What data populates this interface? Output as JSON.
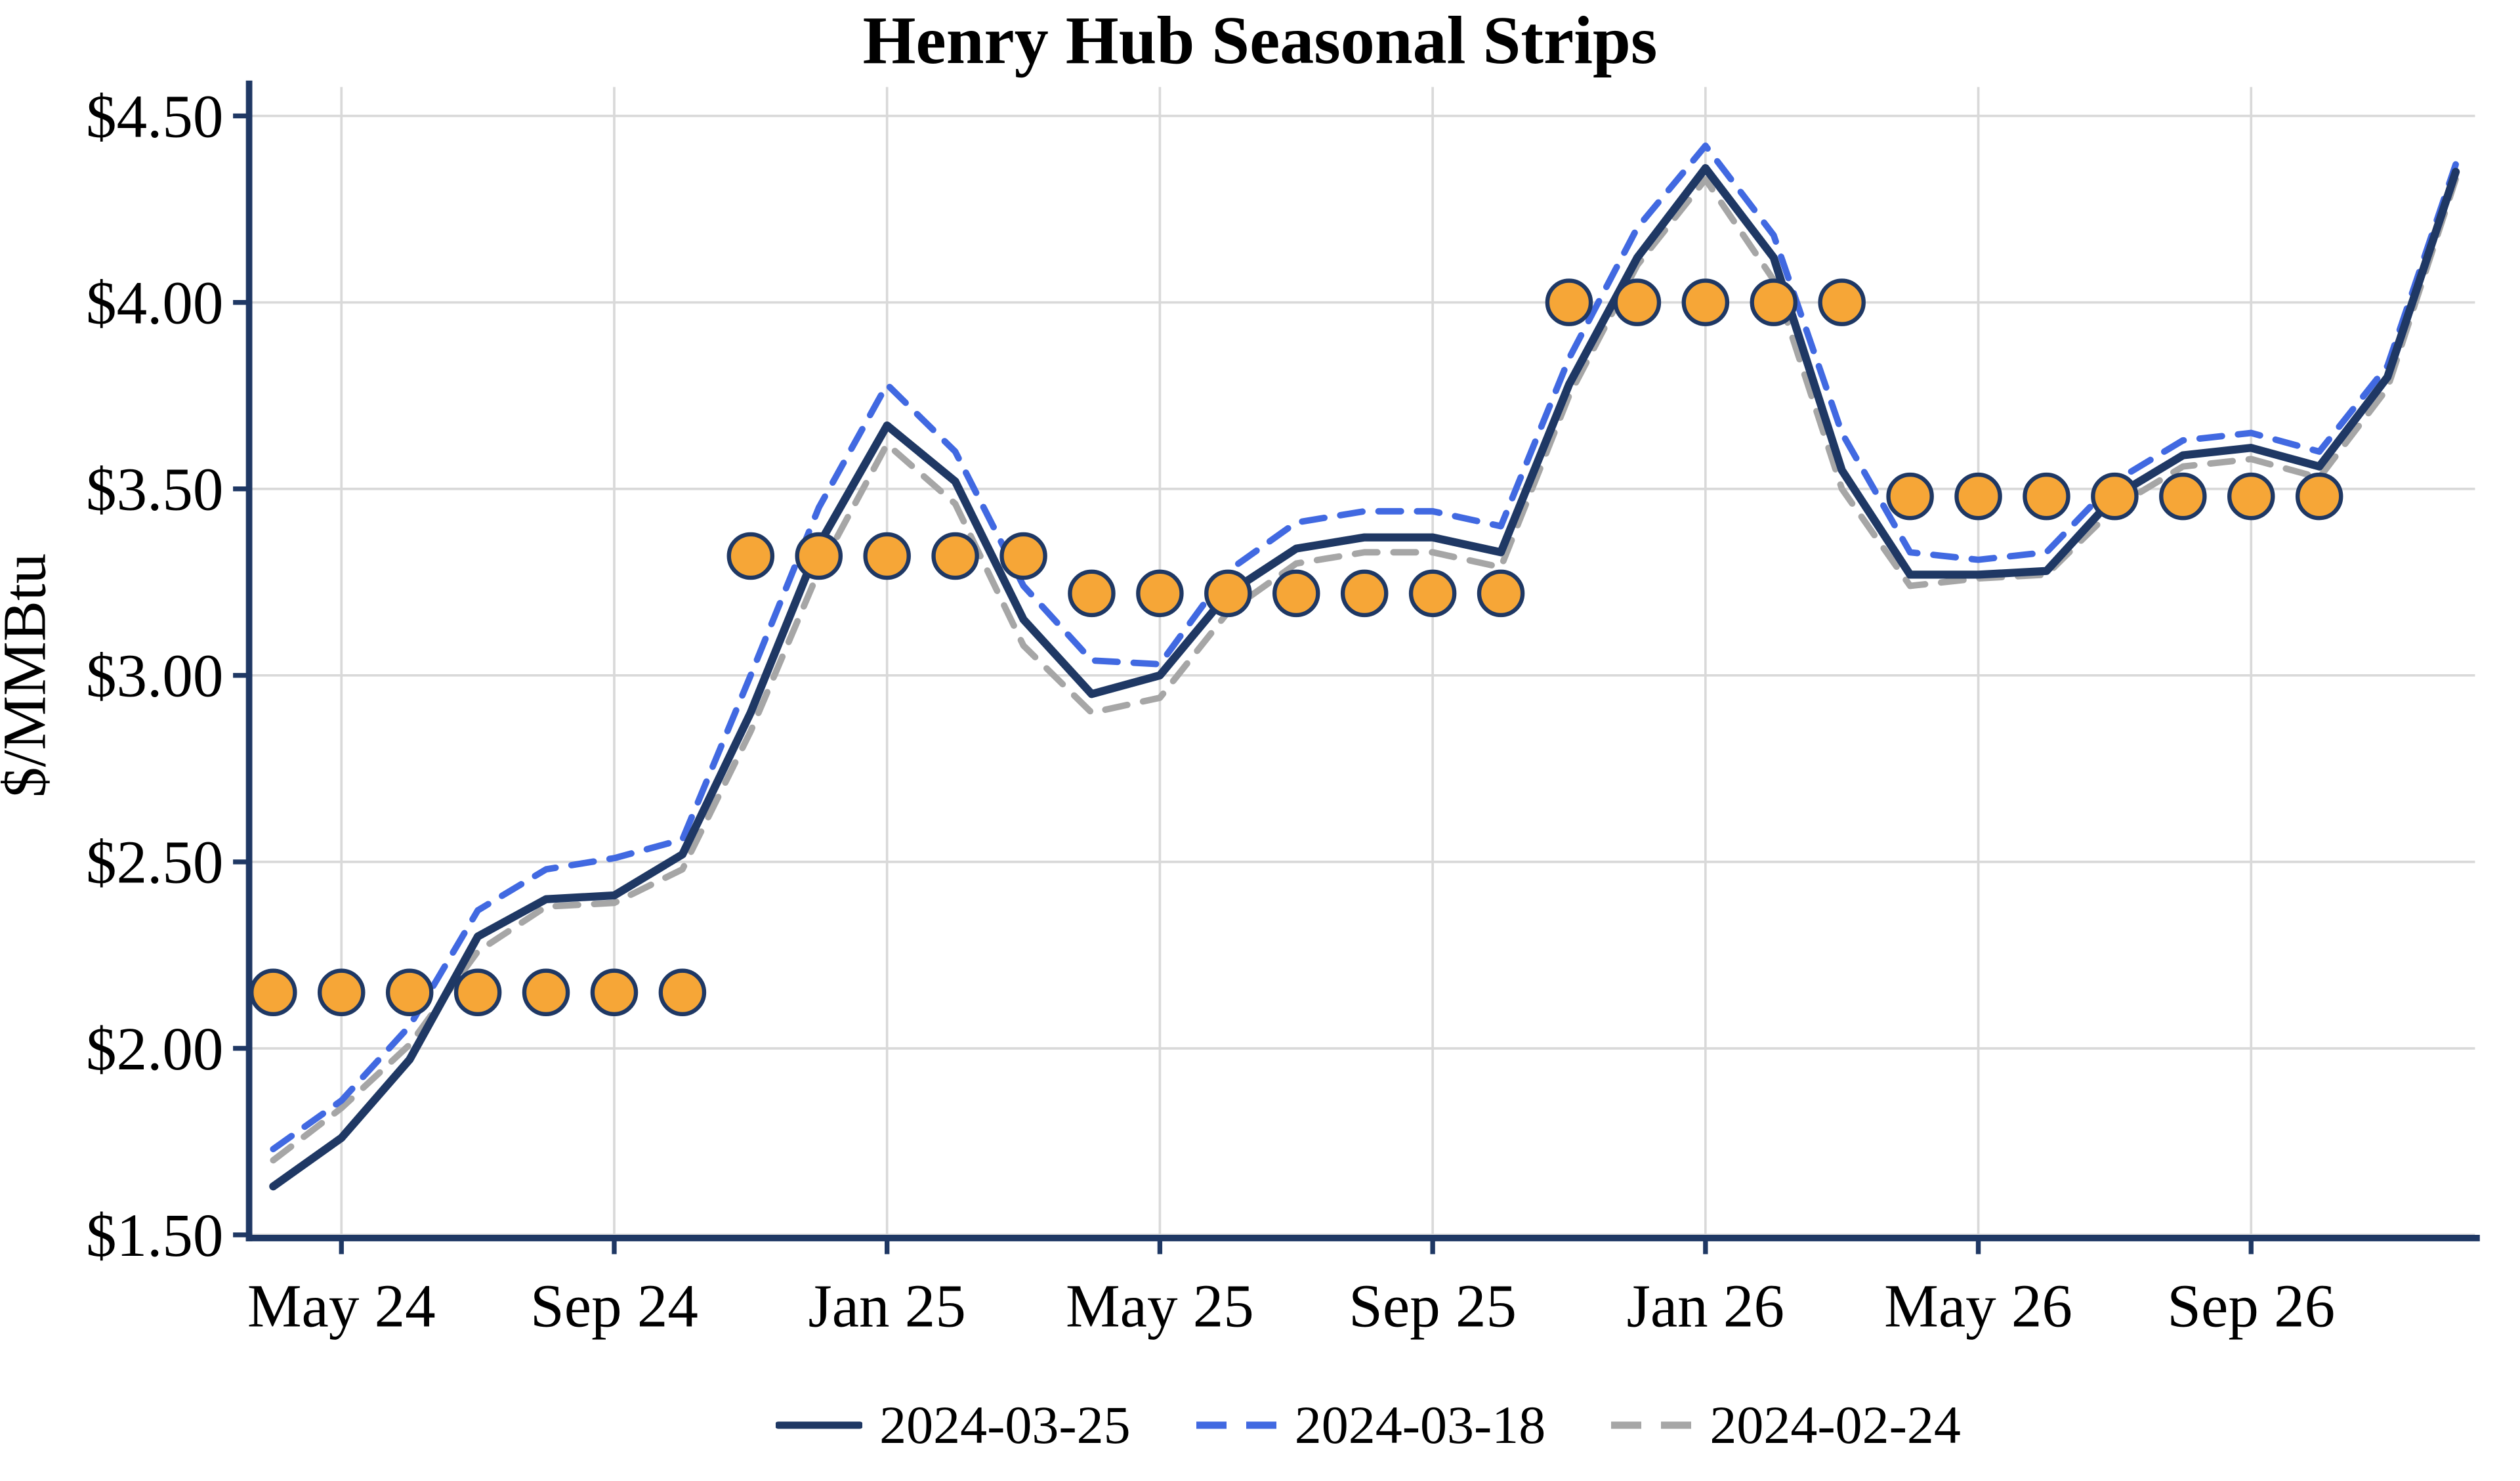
{
  "page": {
    "title": "Henry Hub Seasonal Strips"
  },
  "chart_data": {
    "type": "line",
    "title": "Henry Hub Seasonal Strips",
    "xlabel": "",
    "ylabel": "$/MMBtu",
    "ylim": [
      1.5,
      4.5
    ],
    "grid": true,
    "legend_position": "bottom",
    "y_ticks": [
      1.5,
      2.0,
      2.5,
      3.0,
      3.5,
      4.0,
      4.5
    ],
    "y_tick_labels": [
      "$1.50",
      "$2.00",
      "$2.50",
      "$3.00",
      "$3.50",
      "$4.00",
      "$4.50"
    ],
    "x_categories": [
      "Apr 24",
      "May 24",
      "Jun 24",
      "Jul 24",
      "Aug 24",
      "Sep 24",
      "Oct 24",
      "Nov 24",
      "Dec 24",
      "Jan 25",
      "Feb 25",
      "Mar 25",
      "Apr 25",
      "May 25",
      "Jun 25",
      "Jul 25",
      "Aug 25",
      "Sep 25",
      "Oct 25",
      "Nov 25",
      "Dec 25",
      "Jan 26",
      "Feb 26",
      "Mar 26",
      "Apr 26",
      "May 26",
      "Jun 26",
      "Jul 26",
      "Aug 26",
      "Sep 26",
      "Oct 26",
      "Nov 26",
      "Dec 26"
    ],
    "x_tick_indices": [
      1,
      5,
      9,
      13,
      17,
      21,
      25,
      29
    ],
    "x_tick_labels": [
      "May 24",
      "Sep 24",
      "Jan 25",
      "May 25",
      "Sep 25",
      "Jan 26",
      "May 26",
      "Sep 26"
    ],
    "series": [
      {
        "name": "2024-03-25",
        "style": "solid",
        "color": "#1F3864",
        "values": [
          1.63,
          1.76,
          1.97,
          2.3,
          2.4,
          2.41,
          2.52,
          2.9,
          3.35,
          3.67,
          3.52,
          3.15,
          2.95,
          3.0,
          3.22,
          3.34,
          3.37,
          3.37,
          3.33,
          3.78,
          4.12,
          4.36,
          4.12,
          3.55,
          3.27,
          3.27,
          3.28,
          3.48,
          3.59,
          3.61,
          3.56,
          3.8,
          4.35
        ]
      },
      {
        "name": "2024-03-18",
        "style": "dashed",
        "color": "#4169E1",
        "values": [
          1.73,
          1.86,
          2.06,
          2.37,
          2.48,
          2.51,
          2.56,
          3.0,
          3.45,
          3.78,
          3.6,
          3.24,
          3.04,
          3.03,
          3.28,
          3.41,
          3.44,
          3.44,
          3.4,
          3.85,
          4.2,
          4.42,
          4.18,
          3.65,
          3.33,
          3.31,
          3.33,
          3.52,
          3.63,
          3.65,
          3.6,
          3.83,
          4.37
        ]
      },
      {
        "name": "2024-02-24",
        "style": "dashed",
        "color": "#A6A6A6",
        "values": [
          1.7,
          1.84,
          2.01,
          2.26,
          2.38,
          2.39,
          2.48,
          2.85,
          3.28,
          3.62,
          3.46,
          3.08,
          2.9,
          2.94,
          3.17,
          3.3,
          3.33,
          3.33,
          3.29,
          3.75,
          4.1,
          4.33,
          4.06,
          3.5,
          3.24,
          3.26,
          3.27,
          3.45,
          3.56,
          3.58,
          3.53,
          3.77,
          4.33
        ]
      }
    ],
    "strip_markers": {
      "color": "#F6A637",
      "edge_color": "#1F3864",
      "groups": [
        {
          "start_index": 0,
          "count": 7,
          "value": 2.15
        },
        {
          "start_index": 7,
          "count": 5,
          "value": 3.32
        },
        {
          "start_index": 12,
          "count": 7,
          "value": 3.22
        },
        {
          "start_index": 19,
          "count": 5,
          "value": 4.0
        },
        {
          "start_index": 24,
          "count": 7,
          "value": 3.48
        }
      ]
    },
    "colors": {
      "axis": "#1F3864",
      "grid": "#D9D9D9",
      "text": "#000000"
    }
  },
  "legend": {
    "items": [
      {
        "label": "2024-03-25"
      },
      {
        "label": "2024-03-18"
      },
      {
        "label": "2024-02-24"
      }
    ]
  }
}
